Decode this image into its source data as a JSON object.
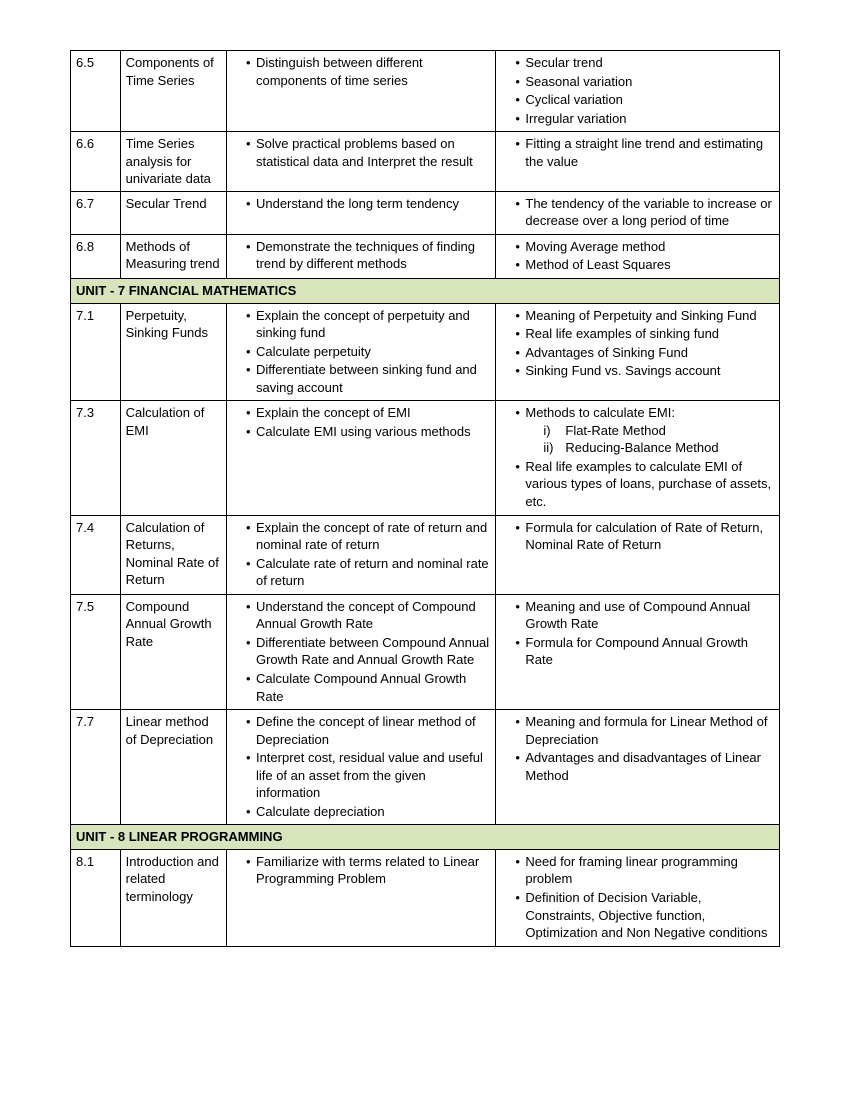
{
  "rows": [
    {
      "num": "6.5",
      "name": "Components of Time Series",
      "col3": [
        "Distinguish between different components of time series"
      ],
      "col4": [
        "Secular trend",
        "Seasonal variation",
        "Cyclical variation",
        "Irregular variation"
      ]
    },
    {
      "num": "6.6",
      "name": "Time Series analysis for univariate data",
      "col3": [
        "Solve practical problems based on statistical data and Interpret the result"
      ],
      "col4": [
        "Fitting a straight line trend and estimating the value"
      ]
    },
    {
      "num": "6.7",
      "name": "Secular Trend",
      "col3": [
        "Understand the long term tendency"
      ],
      "col4": [
        "The tendency of the variable to increase or decrease over a long period of time"
      ]
    },
    {
      "num": "6.8",
      "name": "Methods of Measuring trend",
      "col3": [
        "Demonstrate the techniques of finding trend by different methods"
      ],
      "col4": [
        "Moving Average method",
        "Method of Least Squares"
      ]
    }
  ],
  "unit7": "UNIT - 7   FINANCIAL MATHEMATICS",
  "rows7": [
    {
      "num": "7.1",
      "name": "Perpetuity, Sinking Funds",
      "col3": [
        "Explain the concept of perpetuity and sinking fund",
        "Calculate perpetuity",
        " Differentiate between sinking fund and saving account"
      ],
      "col4": [
        "Meaning of Perpetuity and Sinking Fund",
        "Real life examples of sinking fund",
        "Advantages of Sinking Fund",
        "Sinking Fund vs. Savings account"
      ]
    },
    {
      "num": "7.3",
      "name": "Calculation of EMI",
      "col3": [
        "Explain the concept of EMI",
        "Calculate EMI using various methods"
      ],
      "col4special": {
        "top": "Methods to calculate EMI:",
        "roman": [
          [
            "i)",
            "Flat-Rate Method"
          ],
          [
            "ii)",
            "Reducing-Balance Method"
          ]
        ],
        "bottom": "Real life examples to calculate EMI of various types of loans, purchase of assets, etc."
      }
    },
    {
      "num": "7.4",
      "name": "Calculation of Returns, Nominal Rate of Return",
      "col3": [
        " Explain the concept of rate of return and nominal rate of return",
        " Calculate rate of return and nominal rate of return"
      ],
      "col4": [
        "Formula for calculation of Rate of Return, Nominal Rate of Return"
      ]
    },
    {
      "num": "7.5",
      "name": "Compound Annual Growth Rate",
      "col3": [
        "Understand the concept of Compound Annual Growth Rate",
        "Differentiate between Compound Annual Growth Rate and Annual Growth Rate",
        "Calculate Compound Annual Growth Rate"
      ],
      "col4": [
        "Meaning and use of Compound Annual Growth Rate",
        "Formula for Compound Annual Growth Rate"
      ]
    },
    {
      "num": "7.7",
      "name": "Linear method of Depreciation",
      "col3": [
        "Define the concept of linear method of Depreciation",
        "Interpret cost, residual value and useful life of an asset from the given information",
        "Calculate depreciation"
      ],
      "col4": [
        "Meaning and formula for Linear Method of Depreciation",
        "Advantages and disadvantages of Linear Method"
      ]
    }
  ],
  "unit8": "UNIT - 8   LINEAR PROGRAMMING",
  "rows8": [
    {
      "num": "8.1",
      "name": "Introduction and related terminology",
      "col3": [
        "Familiarize with terms related to Linear Programming Problem"
      ],
      "col4": [
        "Need for framing linear programming problem",
        "Definition of Decision Variable, Constraints, Objective function, Optimization and Non Negative conditions"
      ]
    }
  ]
}
